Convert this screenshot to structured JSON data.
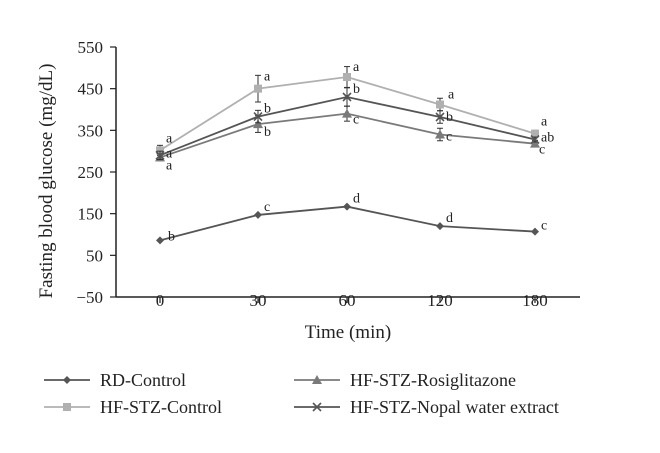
{
  "chart_data": {
    "type": "line",
    "xlabel": "Time (min)",
    "ylabel": "Fasting blood glucose (mg/dL)",
    "categories": [
      "0",
      "30",
      "60",
      "120",
      "180"
    ],
    "y_ticks": [
      "550",
      "450",
      "350",
      "250",
      "150",
      "50",
      "−50"
    ],
    "ylim": [
      -50,
      550
    ],
    "grid": false,
    "legend_position": "bottom",
    "series": [
      {
        "name": "RD-Control",
        "color": "#555555",
        "marker": "diamond",
        "values": [
          86,
          147,
          167,
          120,
          107
        ],
        "errors": [
          3,
          3,
          3,
          3,
          3
        ],
        "labels": [
          "b",
          "c",
          "d",
          "d",
          "c"
        ]
      },
      {
        "name": "HF-STZ-Control",
        "color": "#b0b0b0",
        "marker": "square",
        "values": [
          302,
          450,
          478,
          412,
          342
        ],
        "errors": [
          12,
          32,
          25,
          15,
          8
        ],
        "labels": [
          "a",
          "a",
          "a",
          "a",
          "a"
        ]
      },
      {
        "name": "HF-STZ-Rosiglitazone",
        "color": "#7a7a7a",
        "marker": "triangle",
        "values": [
          285,
          365,
          390,
          340,
          318
        ],
        "errors": [
          8,
          20,
          18,
          15,
          8
        ],
        "labels": [
          "a",
          "b",
          "c",
          "c",
          "c"
        ]
      },
      {
        "name": "HF-STZ-Nopal water extract",
        "color": "#555555",
        "marker": "x",
        "values": [
          290,
          383,
          430,
          382,
          328
        ],
        "errors": [
          10,
          15,
          22,
          15,
          6
        ],
        "labels": [
          "a",
          "b",
          "b",
          "b",
          "ab"
        ]
      }
    ]
  }
}
